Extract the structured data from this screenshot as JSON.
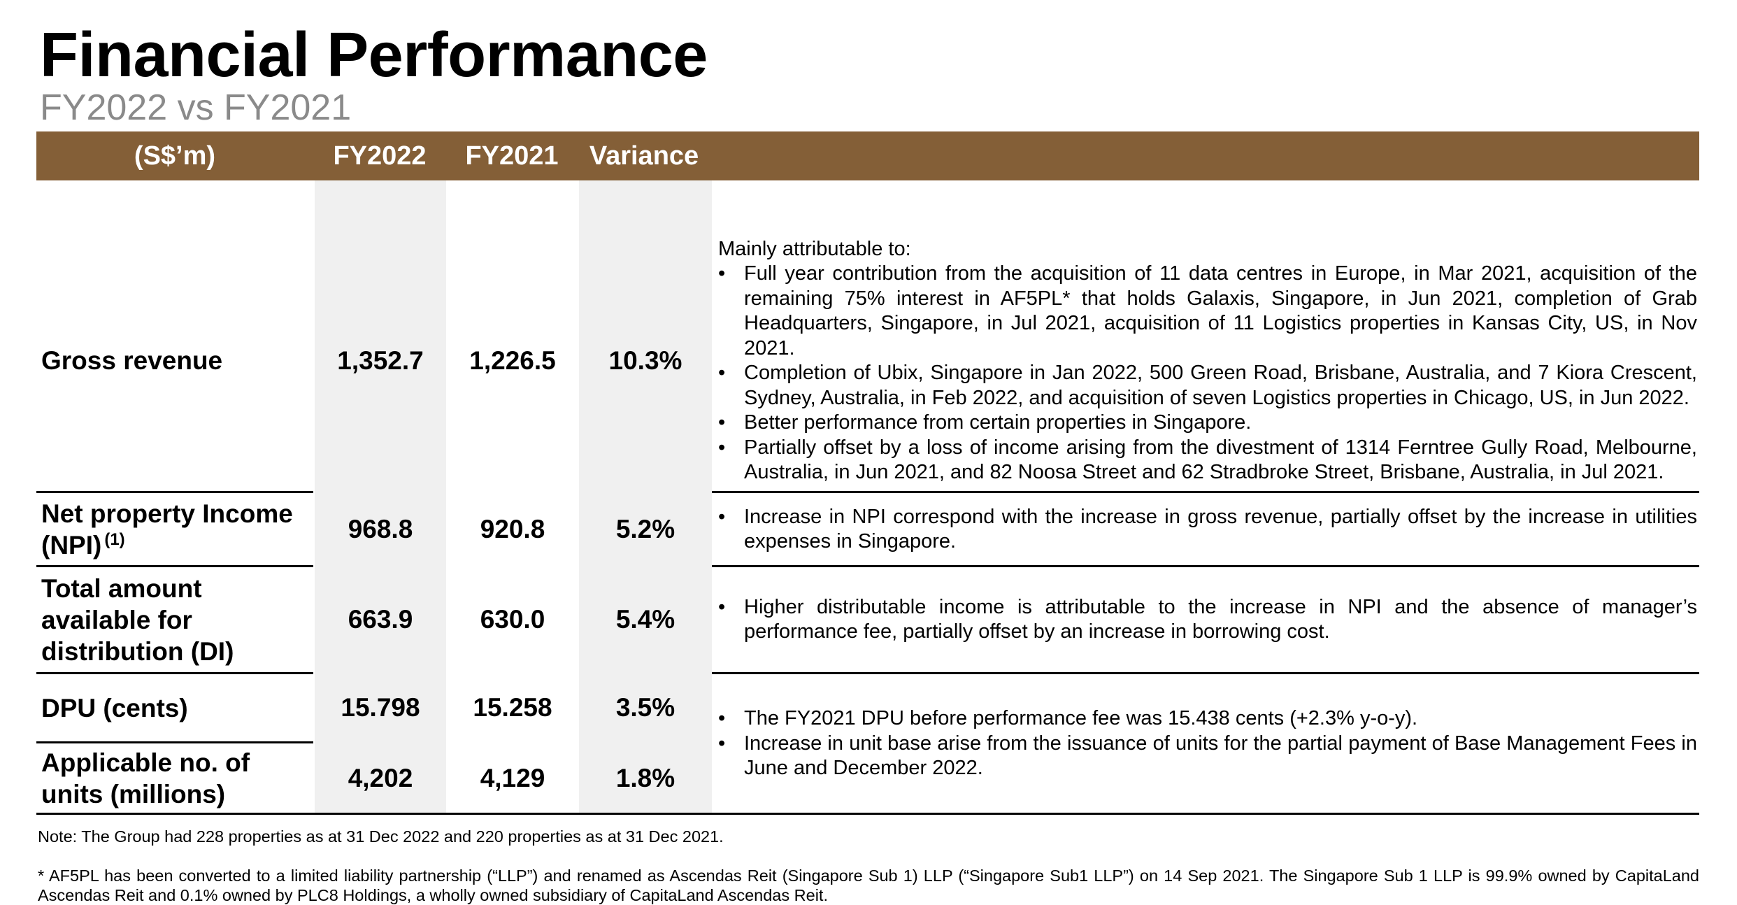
{
  "title": "Financial Performance",
  "subtitle": "FY2022 vs FY2021",
  "table": {
    "headers": [
      "(S$’m)",
      "FY2022",
      "FY2021",
      "Variance"
    ],
    "rows": [
      {
        "label": "Gross revenue",
        "fy2022": "1,352.7",
        "fy2021": "1,226.5",
        "variance": "10.3%"
      },
      {
        "label": "Net property Income (NPI)",
        "label_sup": "(1)",
        "fy2022": "968.8",
        "fy2021": "920.8",
        "variance": "5.2%"
      },
      {
        "label": "Total amount available for distribution (DI)",
        "fy2022": "663.9",
        "fy2021": "630.0",
        "variance": "5.4%"
      },
      {
        "label": "DPU (cents)",
        "fy2022": "15.798",
        "fy2021": "15.258",
        "variance": "3.5%"
      },
      {
        "label": "Applicable no. of units (millions)",
        "fy2022": "4,202",
        "fy2021": "4,129",
        "variance": "1.8%"
      }
    ],
    "descriptions": {
      "gross_revenue": {
        "intro": "Mainly attributable to:",
        "bullets": [
          "Full year contribution from the acquisition of 11 data centres in Europe, in Mar 2021, acquisition of the remaining 75% interest in AF5PL* that holds Galaxis, Singapore, in Jun 2021, completion of Grab Headquarters, Singapore, in Jul 2021, acquisition of 11 Logistics properties in Kansas City, US, in Nov 2021.",
          "Completion of Ubix, Singapore in Jan 2022, 500 Green Road, Brisbane, Australia, and 7 Kiora Crescent, Sydney, Australia, in Feb 2022, and acquisition of seven Logistics properties in Chicago, US, in Jun 2022.",
          "Better performance from certain properties in Singapore.",
          "Partially offset by a loss of income arising from the divestment of 1314 Ferntree Gully Road, Melbourne, Australia, in Jun 2021, and 82 Noosa Street and 62 Stradbroke Street, Brisbane, Australia, in Jul 2021."
        ]
      },
      "npi": {
        "bullets": [
          "Increase in NPI correspond with the increase in gross revenue, partially offset by the increase in utilities expenses in Singapore."
        ]
      },
      "di": {
        "bullets": [
          "Higher distributable income is attributable to the increase in NPI and the absence of manager’s performance fee, partially offset by an increase in borrowing cost."
        ]
      },
      "dpu_units": {
        "bullets": [
          "The FY2021 DPU before performance fee was 15.438 cents (+2.3% y-o-y).",
          "Increase in unit base arise from the issuance of units for the partial payment of Base Management Fees in June and  December 2022."
        ]
      }
    }
  },
  "notes": [
    "Note: The Group had 228 properties as at 31 Dec 2022 and 220 properties as at 31 Dec 2021.",
    "* AF5PL has been converted to a limited liability partnership (“LLP”) and renamed as Ascendas Reit (Singapore Sub 1) LLP (“Singapore Sub1 LLP”) on 14 Sep 2021. The Singapore Sub 1 LLP is 99.9% owned by CapitaLand Ascendas Reit and 0.1% owned by PLC8 Holdings, a wholly owned subsidiary of CapitaLand Ascendas Reit."
  ],
  "colors": {
    "header_bg": "#845f37",
    "header_text": "#ffffff",
    "value_column_shade": "#f0f0f0",
    "subtitle": "#8a8a8a"
  }
}
